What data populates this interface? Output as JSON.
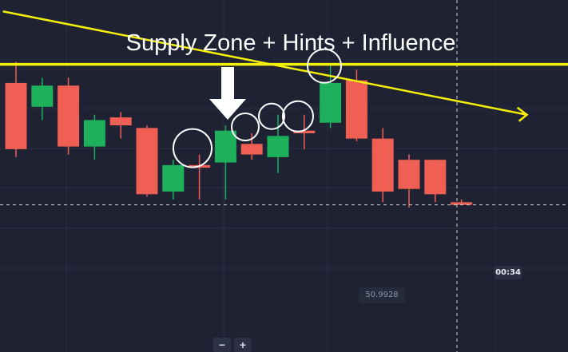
{
  "annotation": {
    "title": "Supply Zone + Hints + Influence"
  },
  "timer": "00:34",
  "price_marker": "50.9928",
  "zoom": {
    "minus": "−",
    "plus": "+"
  },
  "colors": {
    "background": "#1e2233",
    "bullish": "#1fb05c",
    "bearish": "#ef5f53",
    "annotation": "#f5f00a",
    "highlight_circle": "#ffffff"
  },
  "chart_data": {
    "type": "candlestick",
    "title": "Supply Zone + Hints + Influence",
    "ylim": [
      0,
      100
    ],
    "candles": [
      {
        "open": 69,
        "close": 44,
        "high": 77,
        "low": 41
      },
      {
        "open": 60,
        "close": 68,
        "high": 71,
        "low": 55
      },
      {
        "open": 68,
        "close": 45,
        "high": 71,
        "low": 42
      },
      {
        "open": 45,
        "close": 55,
        "high": 57,
        "low": 40
      },
      {
        "open": 56,
        "close": 53,
        "high": 58,
        "low": 48
      },
      {
        "open": 52,
        "close": 27,
        "high": 53,
        "low": 26
      },
      {
        "open": 28,
        "close": 38,
        "high": 40,
        "low": 25
      },
      {
        "open": 38,
        "close": 37,
        "high": 42,
        "low": 25
      },
      {
        "open": 39,
        "close": 51,
        "high": 53,
        "low": 25
      },
      {
        "open": 46,
        "close": 42,
        "high": 50,
        "low": 40
      },
      {
        "open": 41,
        "close": 49,
        "high": 57,
        "low": 35
      },
      {
        "open": 51,
        "close": 50,
        "high": 57,
        "low": 44
      },
      {
        "open": 54,
        "close": 69,
        "high": 76,
        "low": 52
      },
      {
        "open": 70,
        "close": 48,
        "high": 74,
        "low": 47
      },
      {
        "open": 48,
        "close": 28,
        "high": 52,
        "low": 24
      },
      {
        "open": 40,
        "close": 29,
        "high": 42,
        "low": 22
      },
      {
        "open": 40,
        "close": 27,
        "high": 40,
        "low": 24
      },
      {
        "open": 24,
        "close": 23,
        "high": 25,
        "low": 23
      }
    ],
    "current_price": 23,
    "supply_zone_level": 76,
    "trendline": {
      "from_candle": -0.5,
      "from_value": 96,
      "to_candle": 19.5,
      "to_value": 57
    },
    "hint_circles": [
      6,
      8,
      10,
      11,
      12
    ],
    "influence_circle": 12
  }
}
